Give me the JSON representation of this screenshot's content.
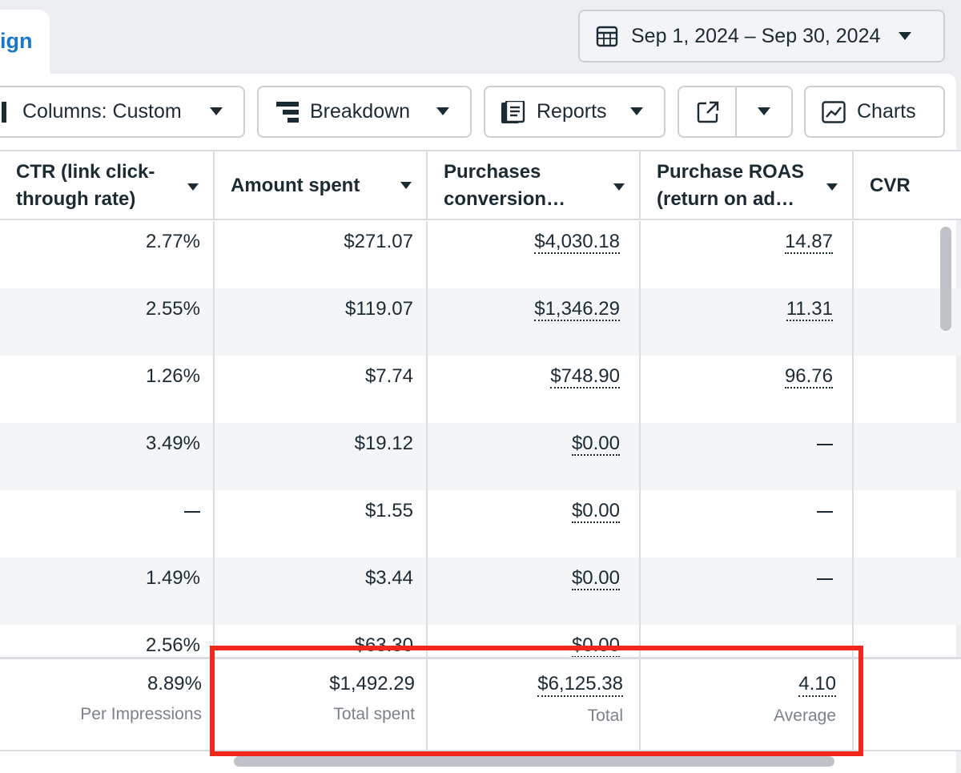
{
  "tab": {
    "label": "ign"
  },
  "date_range": {
    "label": "Sep 1, 2024 – Sep 30, 2024"
  },
  "toolbar": {
    "columns_label": "Columns: Custom",
    "breakdown_label": "Breakdown",
    "reports_label": "Reports",
    "charts_label": "Charts"
  },
  "columns": [
    {
      "line1": "CTR (link click-",
      "line2": "through rate)"
    },
    {
      "line1": "Amount spent",
      "line2": ""
    },
    {
      "line1": "Purchases",
      "line2": "conversion…"
    },
    {
      "line1": "Purchase ROAS",
      "line2": "(return on ad…"
    },
    {
      "line1": "CVR",
      "line2": ""
    }
  ],
  "rows": [
    {
      "ctr": "2.77%",
      "spent": "$271.07",
      "purchases": "$4,030.18",
      "roas": "14.87"
    },
    {
      "ctr": "2.55%",
      "spent": "$119.07",
      "purchases": "$1,346.29",
      "roas": "11.31"
    },
    {
      "ctr": "1.26%",
      "spent": "$7.74",
      "purchases": "$748.90",
      "roas": "96.76"
    },
    {
      "ctr": "3.49%",
      "spent": "$19.12",
      "purchases": "$0.00",
      "roas": "—"
    },
    {
      "ctr": "—",
      "spent": "$1.55",
      "purchases": "$0.00",
      "roas": "—"
    },
    {
      "ctr": "1.49%",
      "spent": "$3.44",
      "purchases": "$0.00",
      "roas": "—"
    },
    {
      "ctr": "2.56%",
      "spent": "$63.30",
      "purchases": "$0.00",
      "roas": "—"
    }
  ],
  "totals": {
    "ctr_value": "8.89%",
    "ctr_label": "Per Impressions",
    "spent_value": "$1,492.29",
    "spent_label": "Total spent",
    "purchases_value": "$6,125.38",
    "purchases_label": "Total",
    "roas_value": "4.10",
    "roas_label": "Average"
  },
  "colors": {
    "accent": "#1877c9",
    "highlight": "#f0271d"
  },
  "icons": [
    "calendar-icon",
    "columns-icon",
    "breakdown-icon",
    "reports-icon",
    "export-icon",
    "charts-icon",
    "caret-down-icon"
  ]
}
